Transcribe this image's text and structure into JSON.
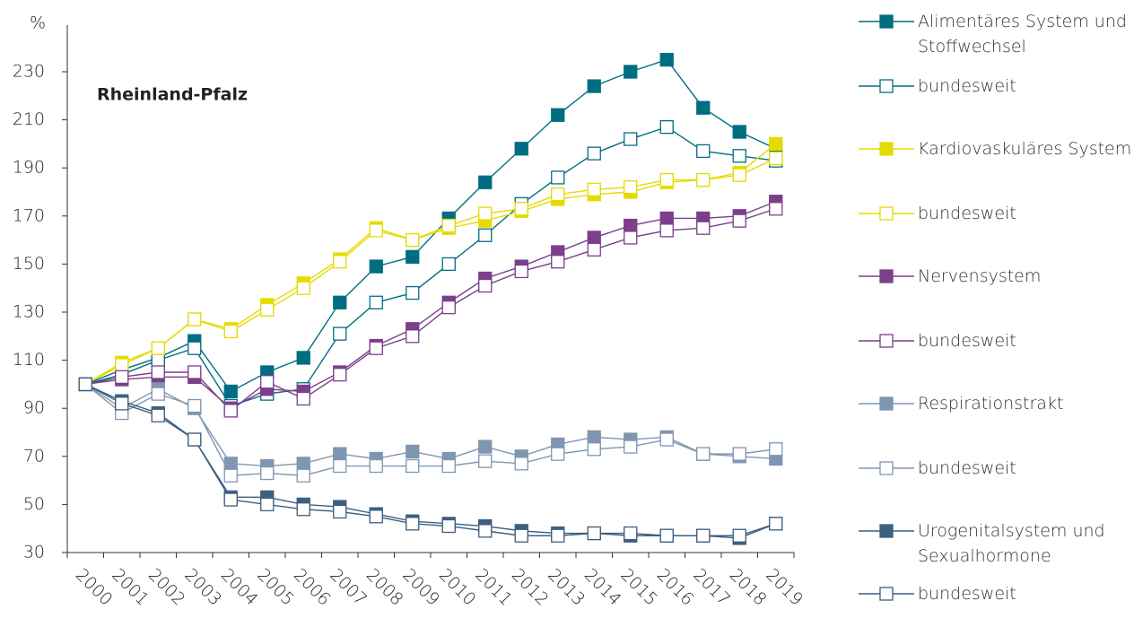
{
  "chart_data": {
    "type": "line",
    "y_label": "%",
    "annotation": "Rheinland-Pfalz",
    "categories": [
      "2000",
      "2001",
      "2002",
      "2003",
      "2004",
      "2005",
      "2006",
      "2007",
      "2008",
      "2009",
      "2010",
      "2011",
      "2012",
      "2013",
      "2014",
      "2015",
      "2016",
      "2017",
      "2018",
      "2019"
    ],
    "ylim": [
      30,
      250
    ],
    "yticks": [
      30,
      50,
      70,
      90,
      110,
      130,
      150,
      170,
      190,
      210,
      230
    ],
    "grid": false,
    "legend": "right",
    "series": [
      {
        "name": "Alimentäres System und Stoffwechsel",
        "color": "#006e82",
        "marker": "filled",
        "values": [
          100,
          106,
          111,
          118,
          97,
          105,
          111,
          134,
          149,
          153,
          169,
          184,
          198,
          212,
          224,
          230,
          235,
          215,
          205,
          198
        ]
      },
      {
        "name": "bundesweit",
        "color": "#006e82",
        "marker": "open",
        "values": [
          100,
          104,
          110,
          115,
          91,
          96,
          98,
          121,
          134,
          138,
          150,
          162,
          175,
          186,
          196,
          202,
          207,
          197,
          195,
          193
        ]
      },
      {
        "name": "Kardiovaskuläres System",
        "color": "#e6db00",
        "marker": "filled",
        "values": [
          100,
          109,
          115,
          127,
          123,
          133,
          142,
          152,
          165,
          160,
          165,
          168,
          172,
          177,
          179,
          180,
          184,
          185,
          188,
          200
        ]
      },
      {
        "name": "bundesweit",
        "color": "#e6db00",
        "marker": "open",
        "values": [
          100,
          108,
          115,
          127,
          122,
          131,
          140,
          151,
          164,
          160,
          166,
          171,
          173,
          179,
          181,
          182,
          185,
          185,
          187,
          194
        ]
      },
      {
        "name": "Nervensystem",
        "color": "#7b3f8c",
        "marker": "filled",
        "values": [
          100,
          102,
          103,
          103,
          90,
          98,
          97,
          105,
          116,
          123,
          134,
          144,
          149,
          155,
          161,
          166,
          169,
          169,
          170,
          176
        ]
      },
      {
        "name": "bundesweit",
        "color": "#7b3f8c",
        "marker": "open",
        "values": [
          100,
          103,
          105,
          105,
          89,
          101,
          94,
          104,
          115,
          120,
          132,
          141,
          147,
          151,
          156,
          161,
          164,
          165,
          168,
          173
        ]
      },
      {
        "name": "Respirationstrakt",
        "color": "#7f96b0",
        "marker": "filled",
        "values": [
          100,
          90,
          98,
          90,
          67,
          66,
          67,
          71,
          69,
          72,
          69,
          74,
          70,
          75,
          78,
          77,
          78,
          71,
          70,
          69
        ]
      },
      {
        "name": "bundesweit",
        "color": "#7f96b0",
        "marker": "open",
        "values": [
          100,
          88,
          96,
          91,
          62,
          63,
          62,
          66,
          66,
          66,
          66,
          68,
          67,
          71,
          73,
          74,
          77,
          71,
          71,
          73
        ]
      },
      {
        "name": "Urogenitalsystem und Sexualhormone",
        "color": "#3d5f80",
        "marker": "filled",
        "values": [
          100,
          93,
          88,
          77,
          53,
          53,
          50,
          49,
          46,
          43,
          42,
          41,
          39,
          38,
          38,
          37,
          37,
          37,
          36,
          42
        ]
      },
      {
        "name": "bundesweit",
        "color": "#3d5f80",
        "marker": "open",
        "values": [
          100,
          92,
          87,
          77,
          52,
          50,
          48,
          47,
          45,
          42,
          41,
          39,
          37,
          37,
          38,
          38,
          37,
          37,
          37,
          42
        ]
      }
    ]
  }
}
